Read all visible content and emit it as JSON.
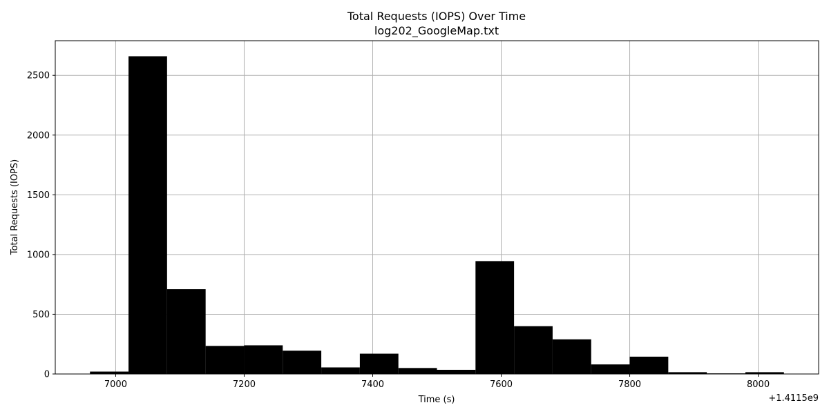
{
  "chart_data": {
    "type": "bar",
    "title": "Total Requests (IOPS) Over Time",
    "subtitle": "log202_GoogleMap.txt",
    "xlabel": "Time (s)",
    "ylabel": "Total Requests (IOPS)",
    "x_offset_label": "+1.4115e9",
    "xlim": [
      6906,
      8094
    ],
    "ylim": [
      0,
      2790
    ],
    "x_ticks": [
      7000,
      7200,
      7400,
      7600,
      7800,
      8000
    ],
    "y_ticks": [
      0,
      500,
      1000,
      1500,
      2000,
      2500
    ],
    "grid": true,
    "bar_color": "#000000",
    "bins": [
      {
        "x0": 6960,
        "x1": 7020,
        "value": 20
      },
      {
        "x0": 7020,
        "x1": 7080,
        "value": 2660
      },
      {
        "x0": 7080,
        "x1": 7140,
        "value": 710
      },
      {
        "x0": 7140,
        "x1": 7200,
        "value": 235
      },
      {
        "x0": 7200,
        "x1": 7260,
        "value": 240
      },
      {
        "x0": 7260,
        "x1": 7320,
        "value": 195
      },
      {
        "x0": 7320,
        "x1": 7380,
        "value": 55
      },
      {
        "x0": 7380,
        "x1": 7440,
        "value": 170
      },
      {
        "x0": 7440,
        "x1": 7500,
        "value": 50
      },
      {
        "x0": 7500,
        "x1": 7560,
        "value": 35
      },
      {
        "x0": 7560,
        "x1": 7620,
        "value": 945
      },
      {
        "x0": 7620,
        "x1": 7680,
        "value": 400
      },
      {
        "x0": 7680,
        "x1": 7740,
        "value": 290
      },
      {
        "x0": 7740,
        "x1": 7800,
        "value": 80
      },
      {
        "x0": 7800,
        "x1": 7860,
        "value": 145
      },
      {
        "x0": 7860,
        "x1": 7920,
        "value": 15
      },
      {
        "x0": 7920,
        "x1": 7980,
        "value": 5
      },
      {
        "x0": 7980,
        "x1": 8040,
        "value": 15
      }
    ]
  }
}
